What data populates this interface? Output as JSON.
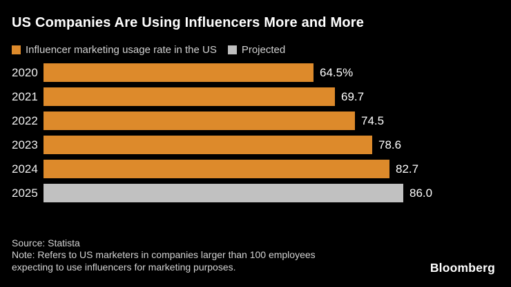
{
  "title": "US Companies Are Using Influencers More and More",
  "legend": {
    "items": [
      {
        "name": "usage-rate",
        "label": "Influencer marketing usage rate in the US",
        "color": "#DD8A2B"
      },
      {
        "name": "projected",
        "label": "Projected",
        "color": "#BFBFBF"
      }
    ]
  },
  "chart_data": {
    "type": "bar",
    "orientation": "horizontal",
    "title": "US Companies Are Using Influencers More and More",
    "categories": [
      "2020",
      "2021",
      "2022",
      "2023",
      "2024",
      "2025"
    ],
    "values": [
      64.5,
      69.7,
      74.5,
      78.6,
      82.7,
      86.0
    ],
    "value_labels": [
      "64.5%",
      "69.7",
      "74.5",
      "78.6",
      "82.7",
      "86.0"
    ],
    "projected": [
      false,
      false,
      false,
      false,
      false,
      true
    ],
    "series": [
      {
        "name": "Influencer marketing usage rate in the US",
        "values": [
          64.5,
          69.7,
          74.5,
          78.6,
          82.7,
          null
        ]
      },
      {
        "name": "Projected",
        "values": [
          null,
          null,
          null,
          null,
          null,
          86.0
        ]
      }
    ],
    "bar_color": "#DD8A2B",
    "projected_bar_color": "#C1C1C1",
    "xlabel": "",
    "ylabel": "",
    "grid": false,
    "legend_position": "top"
  },
  "footer": {
    "source": "Source: Statista",
    "note_lines": [
      "Note: Refers to US marketers in companies larger than 100 employees",
      "expecting to use influencers for marketing purposes."
    ],
    "brand": "Bloomberg"
  },
  "colors": {
    "background": "#000000",
    "title_text": "#FFFFFF",
    "legend_text": "#D2D2D2",
    "category_text": "#F0F0F0",
    "value_text": "#FFFFFF",
    "footer_text": "#D4D4D4"
  }
}
